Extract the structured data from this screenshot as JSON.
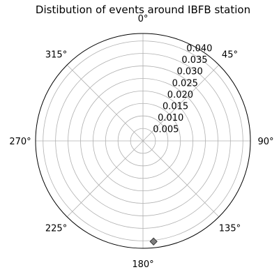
{
  "chart_data": {
    "type": "scatter",
    "projection": "polar",
    "title": "Distibution of events around IBFB station",
    "theta_zero_location": "N",
    "theta_direction": "clockwise",
    "theta_ticks": [
      0,
      45,
      90,
      135,
      180,
      225,
      270,
      315
    ],
    "theta_tick_labels": [
      "0°",
      "45°",
      "90°",
      "135°",
      "180°",
      "225°",
      "270°",
      "315°"
    ],
    "r_ticks": [
      0.005,
      0.01,
      0.015,
      0.02,
      0.025,
      0.03,
      0.035,
      0.04
    ],
    "r_tick_labels": [
      "0.005",
      "0.010",
      "0.015",
      "0.020",
      "0.025",
      "0.030",
      "0.035",
      "0.040"
    ],
    "rlim": [
      0,
      0.043
    ],
    "grid": true,
    "points": [
      {
        "theta": 174,
        "r": 0.0405
      }
    ],
    "marker": "diamond",
    "marker_color": "#7f7f7f",
    "grid_color": "#b0b0b0"
  }
}
